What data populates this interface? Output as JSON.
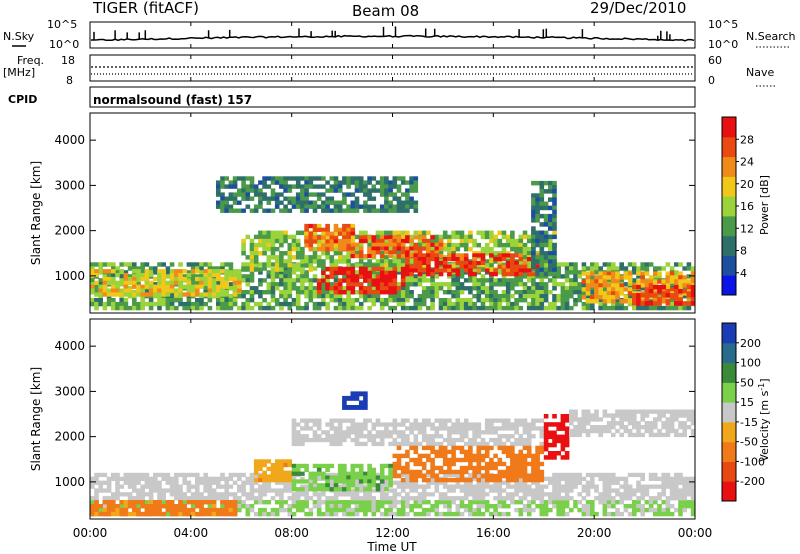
{
  "header": {
    "station": "TIGER (fitACF)",
    "beam": "Beam 08",
    "date": "29/Dec/2010"
  },
  "noise_panel": {
    "left_label": "N.Sky",
    "right_label": "N.Search",
    "left_ticks": [
      "10^5",
      "10^0"
    ],
    "right_ticks": [
      "10^5",
      "10^0"
    ]
  },
  "freq_panel": {
    "left_label_line1": "Freq.",
    "left_label_line2": "[MHz]",
    "right_label": "Nave",
    "left_ticks": [
      "18",
      "8"
    ],
    "right_ticks": [
      "60",
      "0"
    ]
  },
  "cpid_panel": {
    "label": "CPID",
    "program": "normalsound (fast) 157"
  },
  "x_axis": {
    "label": "Time UT",
    "ticks": [
      "00:00",
      "04:00",
      "08:00",
      "12:00",
      "16:00",
      "20:00",
      "00:00"
    ]
  },
  "chart_data": [
    {
      "type": "heatmap",
      "title": "Power",
      "ylabel": "Slant Range [km]",
      "xlabel": "Time UT",
      "xlim": [
        0,
        24
      ],
      "ylim": [
        180,
        4600
      ],
      "y_ticks": [
        1000,
        2000,
        3000,
        4000
      ],
      "colorbar": {
        "label": "Power [dB]",
        "ticks": [
          28,
          24,
          20,
          16,
          12,
          8,
          4
        ],
        "range": [
          0,
          32
        ],
        "colors": [
          "#0a14e6",
          "#1c4fa0",
          "#2f6f6a",
          "#4a9a4a",
          "#9ad33a",
          "#f0c81a",
          "#f08a1a",
          "#e84a12",
          "#e81010"
        ]
      },
      "regions": [
        {
          "t0": 0.0,
          "t1": 24.0,
          "r0": 250,
          "r1": 1300,
          "value": 13
        },
        {
          "t0": 0.0,
          "t1": 6.0,
          "r0": 550,
          "r1": 1150,
          "value": 19
        },
        {
          "t0": 6.0,
          "t1": 18.5,
          "r0": 1100,
          "r1": 2000,
          "value": 15
        },
        {
          "t0": 8.5,
          "t1": 10.5,
          "r0": 1550,
          "r1": 2150,
          "value": 25
        },
        {
          "t0": 10.0,
          "t1": 14.0,
          "r0": 1400,
          "r1": 1900,
          "value": 26
        },
        {
          "t0": 9.0,
          "t1": 12.5,
          "r0": 600,
          "r1": 1200,
          "value": 29
        },
        {
          "t0": 12.5,
          "t1": 18.0,
          "r0": 1000,
          "r1": 1500,
          "value": 28
        },
        {
          "t0": 19.5,
          "t1": 24.0,
          "r0": 400,
          "r1": 1100,
          "value": 22
        },
        {
          "t0": 21.5,
          "t1": 24.0,
          "r0": 350,
          "r1": 800,
          "value": 29
        },
        {
          "t0": 5.0,
          "t1": 13.0,
          "r0": 2400,
          "r1": 3200,
          "value": 10
        },
        {
          "t0": 17.5,
          "t1": 18.5,
          "r0": 1000,
          "r1": 3100,
          "value": 9
        }
      ]
    },
    {
      "type": "heatmap",
      "title": "Velocity",
      "ylabel": "Slant Range [km]",
      "xlabel": "Time UT",
      "xlim": [
        0,
        24
      ],
      "ylim": [
        180,
        4600
      ],
      "y_ticks": [
        1000,
        2000,
        3000,
        4000
      ],
      "colorbar": {
        "label": "Velocity [m s^-1]",
        "ticks": [
          200,
          100,
          50,
          15,
          -15,
          -50,
          -100,
          -200
        ],
        "colors": [
          "#1a3cb4",
          "#2a6a8a",
          "#3a8a3a",
          "#7ad04a",
          "#c8c8c8",
          "#f0a81a",
          "#f07a1a",
          "#e84812",
          "#e81010"
        ]
      },
      "regions": [
        {
          "t0": 0.0,
          "t1": 24.0,
          "r0": 250,
          "r1": 600,
          "value": 20
        },
        {
          "t0": 0.0,
          "t1": 24.0,
          "r0": 600,
          "r1": 1200,
          "value": 0
        },
        {
          "t0": 0.0,
          "t1": 6.0,
          "r0": 250,
          "r1": 600,
          "value": -60
        },
        {
          "t0": 8.0,
          "t1": 18.0,
          "r0": 1800,
          "r1": 2400,
          "value": 0
        },
        {
          "t0": 12.0,
          "t1": 18.0,
          "r0": 1000,
          "r1": 1800,
          "value": -70
        },
        {
          "t0": 18.0,
          "t1": 19.0,
          "r0": 1500,
          "r1": 2500,
          "value": -220
        },
        {
          "t0": 6.5,
          "t1": 8.0,
          "r0": 1000,
          "r1": 1500,
          "value": -40
        },
        {
          "t0": 8.0,
          "t1": 12.0,
          "r0": 800,
          "r1": 1400,
          "value": 40
        },
        {
          "t0": 10.0,
          "t1": 11.0,
          "r0": 2600,
          "r1": 3000,
          "value": 220
        },
        {
          "t0": 19.0,
          "t1": 24.0,
          "r0": 2000,
          "r1": 2600,
          "value": 0
        }
      ]
    }
  ]
}
